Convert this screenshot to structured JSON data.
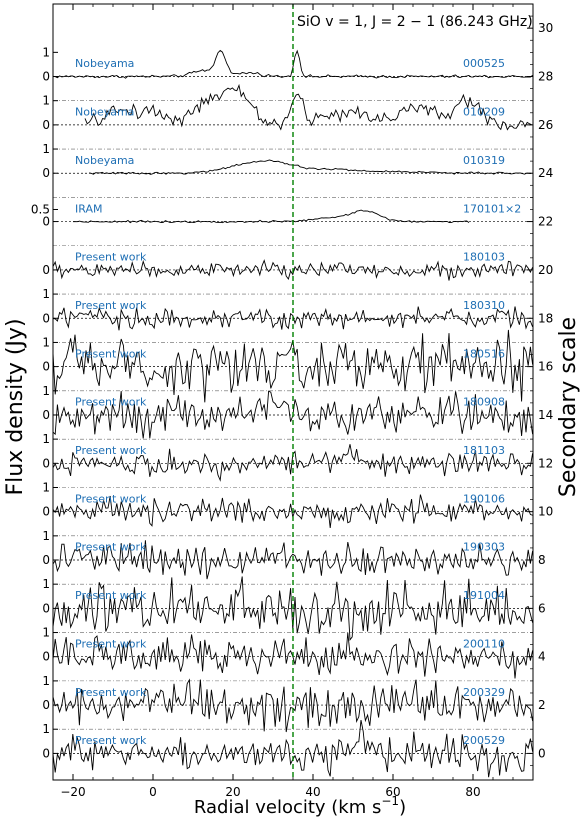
{
  "chart_data": {
    "type": "line",
    "title": "SiO v = 1, J = 2 − 1 (86.243 GHz)",
    "xlabel": "Radial velocity (km s⁻¹)",
    "xlabel_main": "Radial velocity (km s",
    "xlabel_sup": "−1",
    "xlabel_close": ")",
    "ylabel": "Flux density (Jy)",
    "y2label": "Secondary scale",
    "xlim": [
      -25,
      95
    ],
    "ylim": [
      -1.1,
      31.0
    ],
    "xticks": [
      -20,
      0,
      20,
      40,
      60,
      80
    ],
    "xtick_labels": [
      "−20",
      "0",
      "20",
      "40",
      "60",
      "80"
    ],
    "y2ticks": [
      0,
      2,
      4,
      6,
      8,
      10,
      12,
      14,
      16,
      18,
      20,
      22,
      24,
      26,
      28,
      30
    ],
    "y2tick_labels": [
      "0",
      "2",
      "4",
      "6",
      "8",
      "10",
      "12",
      "14",
      "16",
      "18",
      "20",
      "22",
      "24",
      "26",
      "28",
      "30"
    ],
    "vline": {
      "x": 35,
      "color": "#008000"
    },
    "colors": {
      "trace": "#000000",
      "label": "#1f6fb4",
      "vline": "#008000"
    },
    "series": [
      {
        "telescope": "Nobeyama",
        "date": "000525",
        "offset": 28,
        "x_start": -25,
        "x_end": 95,
        "noise": 0.03,
        "peaks": [
          [
            17,
            1.0,
            1.2
          ],
          [
            13,
            0.25,
            3
          ],
          [
            36,
            1.1,
            0.7
          ],
          [
            24,
            0.15,
            3
          ]
        ],
        "tick_left": [
          {
            "v": 0,
            "label": "0"
          },
          {
            "v": 1,
            "label": "1"
          }
        ]
      },
      {
        "telescope": "Nobeyama",
        "date": "010209",
        "offset": 26,
        "x_start": -17,
        "x_end": 95,
        "noise": 0.15,
        "peaks": [
          [
            -8,
            0.6,
            4
          ],
          [
            0,
            0.5,
            3
          ],
          [
            15,
            1.0,
            5
          ],
          [
            22,
            1.0,
            3
          ],
          [
            36,
            1.1,
            1.5
          ],
          [
            48,
            0.5,
            6
          ],
          [
            66,
            0.7,
            5
          ],
          [
            79,
            1.0,
            3
          ]
        ],
        "tick_left": [
          {
            "v": 0,
            "label": "0"
          },
          {
            "v": 1,
            "label": "1"
          }
        ]
      },
      {
        "telescope": "Nobeyama",
        "date": "010319",
        "offset": 24,
        "x_start": -16,
        "x_end": 95,
        "noise": 0.02,
        "peaks": [
          [
            24,
            0.35,
            6
          ],
          [
            32,
            0.3,
            5
          ],
          [
            45,
            0.15,
            5
          ],
          [
            60,
            0.07,
            8
          ]
        ],
        "tick_left": [
          {
            "v": 0,
            "label": "0"
          },
          {
            "v": 1,
            "label": "1"
          }
        ]
      },
      {
        "telescope": "IRAM",
        "date": "170101×2",
        "offset": 22,
        "x_start": -20,
        "x_end": 79,
        "noise": 0.02,
        "peaks": [
          [
            53,
            0.45,
            3.5
          ],
          [
            44,
            0.15,
            4
          ]
        ],
        "tick_left": [
          {
            "v": 0,
            "label": "0"
          },
          {
            "v": 0.5,
            "label": "0.5"
          }
        ]
      },
      {
        "telescope": "Present work",
        "date": "180103",
        "offset": 20,
        "x_start": -25,
        "x_end": 95,
        "noise": 0.17,
        "peaks": [],
        "tick_left": [
          {
            "v": 0,
            "label": "0"
          }
        ]
      },
      {
        "telescope": "Present work",
        "date": "180310",
        "offset": 18,
        "x_start": -25,
        "x_end": 95,
        "noise": 0.22,
        "peaks": [],
        "tick_left": [
          {
            "v": 0,
            "label": "0"
          },
          {
            "v": 1,
            "label": "1"
          }
        ]
      },
      {
        "telescope": "Present work",
        "date": "180516",
        "offset": 16,
        "x_start": -25,
        "x_end": 95,
        "noise": 0.55,
        "peaks": [
          [
            35,
            1.0,
            0.8
          ]
        ],
        "tick_left": [
          {
            "v": 0,
            "label": "0"
          },
          {
            "v": 1,
            "label": "1"
          }
        ]
      },
      {
        "telescope": "Present work",
        "date": "180908",
        "offset": 14,
        "x_start": -25,
        "x_end": 95,
        "noise": 0.38,
        "peaks": [
          [
            30,
            0.8,
            2
          ]
        ],
        "tick_left": [
          {
            "v": 0,
            "label": "0"
          },
          {
            "v": 1,
            "label": "1"
          }
        ]
      },
      {
        "telescope": "Present work",
        "date": "181103",
        "offset": 12,
        "x_start": -25,
        "x_end": 95,
        "noise": 0.25,
        "peaks": [
          [
            48,
            0.4,
            3
          ]
        ],
        "tick_left": [
          {
            "v": 0,
            "label": "0"
          },
          {
            "v": 1,
            "label": "1"
          }
        ]
      },
      {
        "telescope": "Present work",
        "date": "190106",
        "offset": 10,
        "x_start": -25,
        "x_end": 95,
        "noise": 0.25,
        "peaks": [],
        "tick_left": [
          {
            "v": 0,
            "label": "0"
          },
          {
            "v": 1,
            "label": "1"
          }
        ]
      },
      {
        "telescope": "Present work",
        "date": "190303",
        "offset": 8,
        "x_start": -25,
        "x_end": 95,
        "noise": 0.32,
        "peaks": [],
        "tick_left": [
          {
            "v": 0,
            "label": "0"
          },
          {
            "v": 1,
            "label": "1"
          }
        ]
      },
      {
        "telescope": "Present work",
        "date": "191004",
        "offset": 6,
        "x_start": -25,
        "x_end": 95,
        "noise": 0.55,
        "peaks": [],
        "tick_left": [
          {
            "v": 0,
            "label": "0"
          },
          {
            "v": 1,
            "label": "1"
          }
        ]
      },
      {
        "telescope": "Present work",
        "date": "200110",
        "offset": 4,
        "x_start": -25,
        "x_end": 95,
        "noise": 0.38,
        "peaks": [],
        "tick_left": [
          {
            "v": 0,
            "label": "0"
          },
          {
            "v": 1,
            "label": "1"
          }
        ]
      },
      {
        "telescope": "Present work",
        "date": "200329",
        "offset": 2,
        "x_start": -25,
        "x_end": 95,
        "noise": 0.42,
        "peaks": [],
        "tick_left": [
          {
            "v": 0,
            "label": "0"
          },
          {
            "v": 1,
            "label": "1"
          }
        ]
      },
      {
        "telescope": "Present work",
        "date": "200529",
        "offset": 0,
        "x_start": -25,
        "x_end": 95,
        "noise": 0.38,
        "peaks": [
          [
            52,
            0.7,
            1.5
          ]
        ],
        "tick_left": [
          {
            "v": 0,
            "label": "0"
          },
          {
            "v": 1,
            "label": "1"
          }
        ]
      }
    ]
  }
}
